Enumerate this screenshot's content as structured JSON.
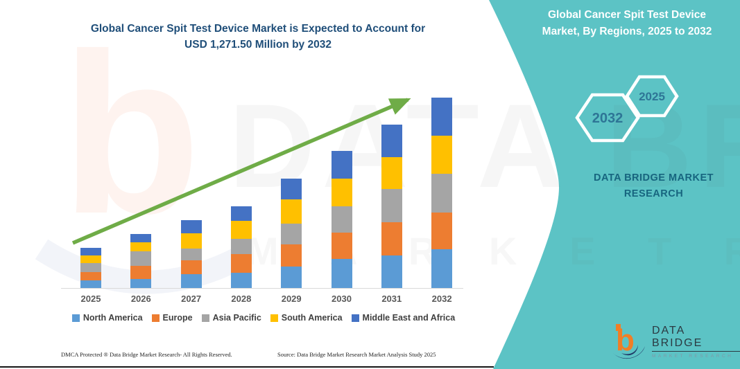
{
  "header": {
    "chart_title": "Global Cancer Spit Test Device Market is Expected to Account for USD 1,271.50 Million by 2032"
  },
  "chart_data": {
    "type": "bar",
    "stacked": true,
    "categories": [
      "2025",
      "2026",
      "2027",
      "2028",
      "2029",
      "2030",
      "2031",
      "2032"
    ],
    "series": [
      {
        "name": "North America",
        "color": "#5B9BD5",
        "values": [
          11,
          13,
          20,
          22,
          31,
          42,
          47,
          56
        ]
      },
      {
        "name": "Europe",
        "color": "#ED7D31",
        "values": [
          12,
          19,
          20,
          27,
          32,
          38,
          48,
          53
        ]
      },
      {
        "name": "Asia Pacific",
        "color": "#A5A5A5",
        "values": [
          13,
          21,
          17,
          22,
          30,
          38,
          48,
          56
        ]
      },
      {
        "name": "South America",
        "color": "#FFC000",
        "values": [
          11,
          13,
          22,
          26,
          35,
          40,
          46,
          55
        ]
      },
      {
        "name": "Middle East and Africa",
        "color": "#4472C4",
        "values": [
          11,
          12,
          19,
          21,
          30,
          40,
          47,
          55
        ]
      }
    ],
    "units": "relative stacked height in px (no value axis shown in figure)",
    "totals_note_from_title": "2032 total = USD 1,271.50 Million",
    "xlabel": "",
    "ylabel": "",
    "grid": false,
    "legend_position": "bottom",
    "trend_arrow": {
      "color": "#70AD47",
      "direction": "up-right"
    }
  },
  "side_panel": {
    "title": "Global Cancer Spit Test Device Market, By Regions, 2025 to 2032",
    "badges": [
      {
        "label": "2032"
      },
      {
        "label": "2025"
      }
    ],
    "brand_text": "DATA BRIDGE MARKET RESEARCH",
    "accent_color": "#5CC3C5"
  },
  "logo": {
    "name": "DATA BRIDGE",
    "tagline": "MARKET RESEARCH"
  },
  "watermark": {
    "line1": "DATA BRIDGE",
    "line2": "M A R K E T   R E S E A R C H"
  },
  "footer": {
    "left": "DMCA Protected ® Data Bridge Market Research-  All Rights Reserved.",
    "right": "Source: Data Bridge Market Research  Market Analysis Study 2025"
  },
  "colors": {
    "title_blue": "#1F4E79",
    "arrow_green": "#70AD47",
    "panel_teal": "#5CC3C5"
  }
}
